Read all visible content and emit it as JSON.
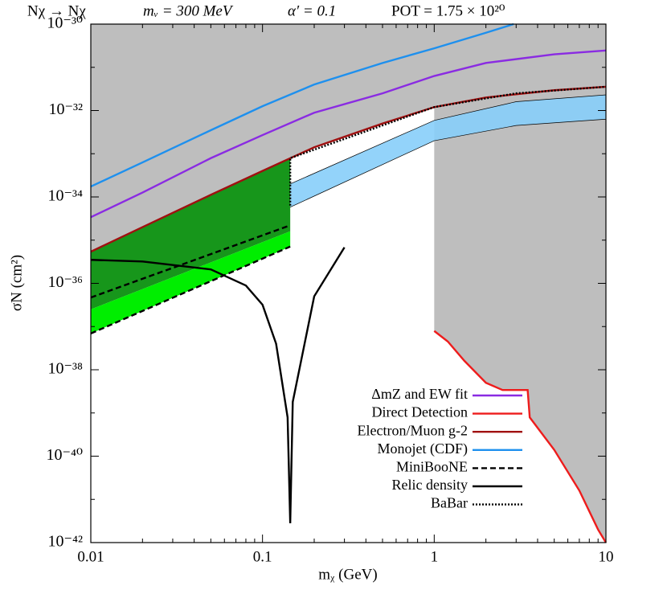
{
  "chart_data": {
    "type": "line",
    "title_parts": [
      "Nχ → Nχ",
      "mᵥ = 300 MeV",
      "α′ = 0.1",
      "POT = 1.75 × 10²⁰"
    ],
    "xlabel": "mᵪ (GeV)",
    "ylabel": "σN (cm²)",
    "xscale": "log",
    "yscale": "log",
    "xlim": [
      0.01,
      10
    ],
    "ylim": [
      1e-42,
      1e-30
    ],
    "xticks": [
      0.01,
      0.1,
      1,
      10
    ],
    "yticks": [
      {
        "value": 1e-42,
        "label": "10⁻⁴²"
      },
      {
        "value": 1e-40,
        "label": "10⁻⁴⁰"
      },
      {
        "value": 1e-38,
        "label": "10⁻³⁸"
      },
      {
        "value": 1e-36,
        "label": "10⁻³⁶"
      },
      {
        "value": 1e-34,
        "label": "10⁻³⁴"
      },
      {
        "value": 1e-32,
        "label": "10⁻³²"
      },
      {
        "value": 1e-30,
        "label": "10⁻³⁰"
      }
    ],
    "legend": "lower right",
    "regions": [
      {
        "color": "#bebebe",
        "x": [
          0.01,
          0.02,
          0.05,
          0.1,
          0.2,
          0.5,
          1,
          2,
          5,
          10
        ],
        "upper": [
          1e-30,
          1e-30,
          1e-30,
          1e-30,
          1e-30,
          1e-30,
          1e-30,
          1e-30,
          1e-30,
          1e-30
        ],
        "lower": [
          5.4e-36,
          2e-35,
          1.12e-34,
          4e-34,
          1.41e-33,
          5e-33,
          1.2e-32,
          2e-32,
          2.95e-32,
          3.55e-32
        ]
      },
      {
        "color": "#bebebe",
        "x": [
          1,
          1.2,
          1.5,
          2,
          2.5,
          3.5,
          3.6,
          5,
          7,
          9,
          10
        ],
        "upper": [
          1e-30,
          1e-30,
          1e-30,
          1e-30,
          1e-30,
          1e-30,
          1e-30,
          1e-30,
          1e-30,
          1e-30,
          1e-30
        ],
        "lower": [
          7.9e-38,
          4.5e-38,
          1.6e-38,
          5e-39,
          3.4e-39,
          3.4e-39,
          7.9e-40,
          1.4e-40,
          1.6e-41,
          2e-42,
          1e-42
        ]
      },
      {
        "color": "#87cefa",
        "x": [
          0.01,
          0.145,
          1,
          3,
          10
        ],
        "upper": [
          3.2e-36,
          2e-34,
          5.9e-33,
          1.6e-32,
          2.3e-32
        ],
        "lower": [
          1e-36,
          5.8e-35,
          2e-33,
          4.5e-33,
          6.3e-33
        ]
      },
      {
        "color": "#17961b",
        "x": [
          0.01,
          0.145
        ],
        "upper": [
          5.4e-36,
          7.9e-34
        ],
        "lower": [
          2.5e-37,
          1.6e-35
        ]
      },
      {
        "color": "#00ee00",
        "x": [
          0.01,
          0.145
        ],
        "upper": [
          2.5e-37,
          1.6e-35
        ],
        "lower": [
          6.9e-38,
          7.1e-36
        ]
      }
    ],
    "series": [
      {
        "name": "ΔmZ and EW fit",
        "color": "#8a2be2",
        "dash": "solid",
        "x": [
          0.01,
          0.02,
          0.05,
          0.1,
          0.2,
          0.5,
          1,
          2,
          5,
          10
        ],
        "values": [
          3.4e-35,
          1.26e-34,
          7.9e-34,
          2.7e-33,
          8.9e-33,
          2.5e-32,
          6.3e-32,
          1.26e-31,
          2e-31,
          2.45e-31
        ]
      },
      {
        "name": "Direct Detection",
        "color": "#ee1c1c",
        "dash": "solid",
        "x": [
          1,
          1.2,
          1.5,
          2,
          2.5,
          3.5,
          3.6,
          5,
          7,
          9,
          10
        ],
        "values": [
          7.9e-38,
          4.5e-38,
          1.6e-38,
          5e-39,
          3.4e-39,
          3.4e-39,
          7.9e-40,
          1.4e-40,
          1.6e-41,
          2e-42,
          1e-42
        ]
      },
      {
        "name": "Electron/Muon g-2",
        "color": "#a01010",
        "dash": "solid",
        "x": [
          0.01,
          0.02,
          0.05,
          0.1,
          0.2,
          0.5,
          1,
          2,
          5,
          10
        ],
        "values": [
          5.4e-36,
          2e-35,
          1.12e-34,
          4e-34,
          1.41e-33,
          5e-33,
          1.2e-32,
          2e-32,
          2.95e-32,
          3.55e-32
        ]
      },
      {
        "name": "Monojet (CDF)",
        "color": "#1e90ee",
        "dash": "solid",
        "x": [
          0.01,
          0.02,
          0.05,
          0.1,
          0.2,
          0.5,
          1,
          2,
          2.9
        ],
        "values": [
          1.74e-34,
          6.3e-34,
          3.5e-33,
          1.26e-32,
          4e-32,
          1.26e-31,
          2.75e-31,
          6.3e-31,
          1e-30
        ]
      },
      {
        "name": "MiniBooNE",
        "color": "#000000",
        "dash": "dashed",
        "x": [
          0.01,
          0.145
        ],
        "values": [
          4.7e-37,
          2.2e-35
        ],
        "values_lower": [
          6.9e-38,
          7.1e-36
        ]
      },
      {
        "name": "Relic density",
        "color": "#000000",
        "dash": "solid",
        "x": [
          0.01,
          0.02,
          0.05,
          0.08,
          0.1,
          0.12,
          0.14,
          0.145,
          0.15,
          0.2,
          0.3
        ],
        "values": [
          3.5e-36,
          3.2e-36,
          2.1e-36,
          8.9e-37,
          3.2e-37,
          4e-38,
          7.9e-40,
          2.8e-42,
          1.8e-39,
          5e-37,
          6.8e-36
        ]
      },
      {
        "name": "BaBar",
        "color": "#000000",
        "dash": "dotted",
        "x": [
          0.145,
          0.145,
          0.3,
          1,
          3,
          10
        ],
        "values": [
          6.3e-35,
          7.9e-34,
          2.2e-33,
          1.2e-32,
          2.5e-32,
          3.55e-32
        ]
      }
    ]
  }
}
